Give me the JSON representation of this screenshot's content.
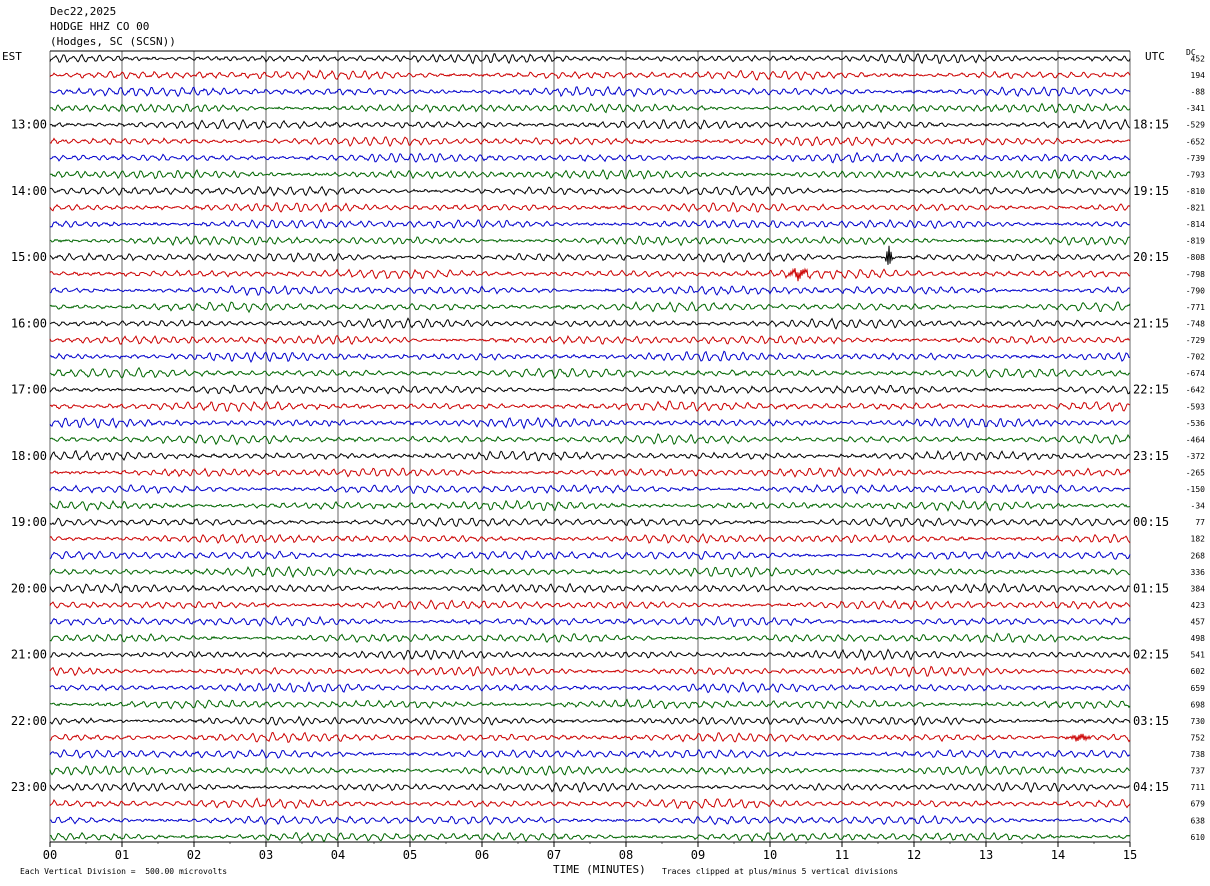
{
  "header": {
    "date": "Dec22,2025",
    "station": "HODGE HHZ CO 00",
    "location": "(Hodges, SC (SCSN))"
  },
  "left_zone": "EST",
  "right_zone": "UTC",
  "dc_label": "DC",
  "footer": {
    "scale": "Each Vertical Division =  500.00 microvolts",
    "xlabel": "TIME (MINUTES)",
    "clip_note": "Traces clipped at plus/minus 5 vertical divisions"
  },
  "colors": {
    "trace_cycle": [
      "#000000",
      "#cc0000",
      "#0000cc",
      "#006600"
    ],
    "grid": "#000000"
  },
  "chart_data": {
    "type": "line",
    "title": "HODGE HHZ CO 00",
    "xlabel": "TIME (MINUTES)",
    "xlim": [
      0,
      15
    ],
    "x_ticks": [
      "00",
      "01",
      "02",
      "03",
      "04",
      "05",
      "06",
      "07",
      "08",
      "09",
      "10",
      "11",
      "12",
      "13",
      "14",
      "15"
    ],
    "rows_per_hour": 4,
    "minutes_per_row": 15,
    "left_hour_labels": [
      "13:00",
      "14:00",
      "15:00",
      "16:00",
      "17:00",
      "18:00",
      "19:00",
      "20:00",
      "21:00",
      "22:00",
      "23:00"
    ],
    "right_hour_labels": [
      "18:15",
      "19:15",
      "20:15",
      "21:15",
      "22:15",
      "23:15",
      "00:15",
      "01:15",
      "02:15",
      "03:15",
      "04:15"
    ],
    "dc_offsets": [
      452,
      194,
      -88,
      -341,
      -529,
      -652,
      -739,
      -793,
      -810,
      -821,
      -814,
      -819,
      -808,
      -798,
      -790,
      -771,
      -748,
      -729,
      -702,
      -674,
      -642,
      -593,
      -536,
      -464,
      -372,
      -265,
      -150,
      -34,
      77,
      182,
      268,
      336,
      384,
      423,
      457,
      498,
      541,
      602,
      659,
      698,
      730,
      752,
      738,
      737,
      711,
      679,
      638,
      610
    ],
    "events": [
      {
        "row": 12,
        "minute": 11.65,
        "amplitude": "large"
      },
      {
        "row": 13,
        "minute": 10.4,
        "amplitude": "medium"
      },
      {
        "row": 41,
        "minute": 14.3,
        "amplitude": "small"
      }
    ],
    "grid": true
  }
}
